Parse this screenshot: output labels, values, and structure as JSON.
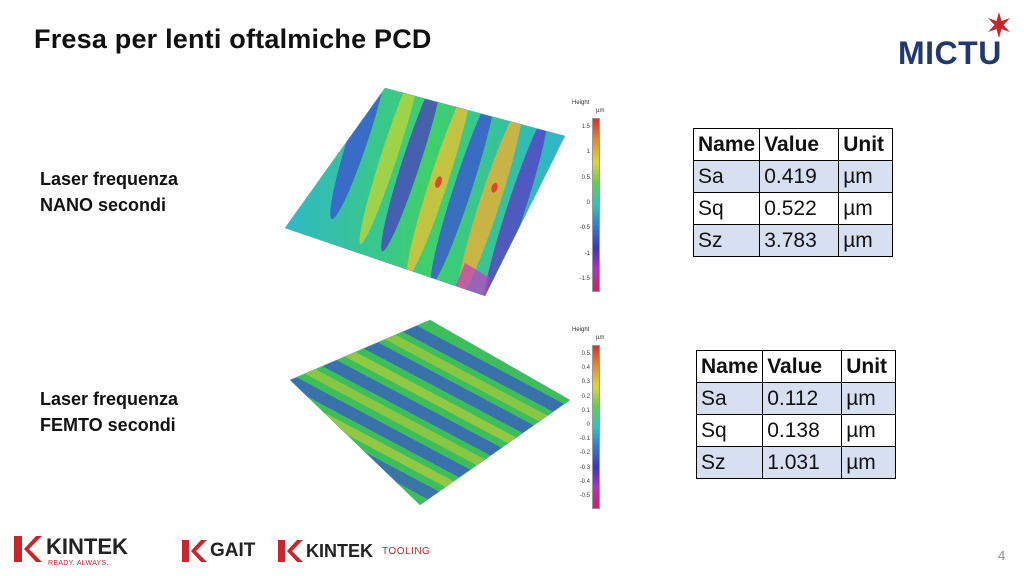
{
  "title": "Fresa per lenti oftalmiche PCD",
  "brand": {
    "logo_text": "MICTU",
    "logo_color": "#213a6e",
    "star_color": "#c8262c"
  },
  "sections": [
    {
      "label_line1": "Laser frequenza",
      "label_line2": "NANO secondi",
      "scale_header": "Height",
      "scale_unit": "µm",
      "scale_ticks": [
        "1.5",
        "1",
        "0.5",
        "0",
        "-0.5",
        "-1",
        "-1.5"
      ],
      "table": {
        "headers": [
          "Name",
          "Value",
          "Unit"
        ],
        "rows": [
          [
            "Sa",
            "0.419",
            "µm"
          ],
          [
            "Sq",
            "0.522",
            "µm"
          ],
          [
            "Sz",
            "3.783",
            "µm"
          ]
        ]
      }
    },
    {
      "label_line1": "Laser frequenza",
      "label_line2": "FEMTO secondi",
      "scale_header": "Height",
      "scale_unit": "µm",
      "scale_ticks": [
        "0.5",
        "0.4",
        "0.3",
        "0.2",
        "0.1",
        "0",
        "-0.1",
        "-0.2",
        "-0.3",
        "-0.4",
        "-0.5"
      ],
      "table": {
        "headers": [
          "Name",
          "Value",
          "Unit"
        ],
        "rows": [
          [
            "Sa",
            "0.112",
            "µm"
          ],
          [
            "Sq",
            "0.138",
            "µm"
          ],
          [
            "Sz",
            "1.031",
            "µm"
          ]
        ]
      }
    }
  ],
  "footer": {
    "kintek": "KINTEK",
    "kintek_tagline": "READY. ALWAYS.",
    "gait": "GAIT",
    "kintek_tooling_main": "KINTEK",
    "kintek_tooling_suffix": "TOOLING",
    "accent_color": "#c8262c"
  },
  "page_number": "4"
}
